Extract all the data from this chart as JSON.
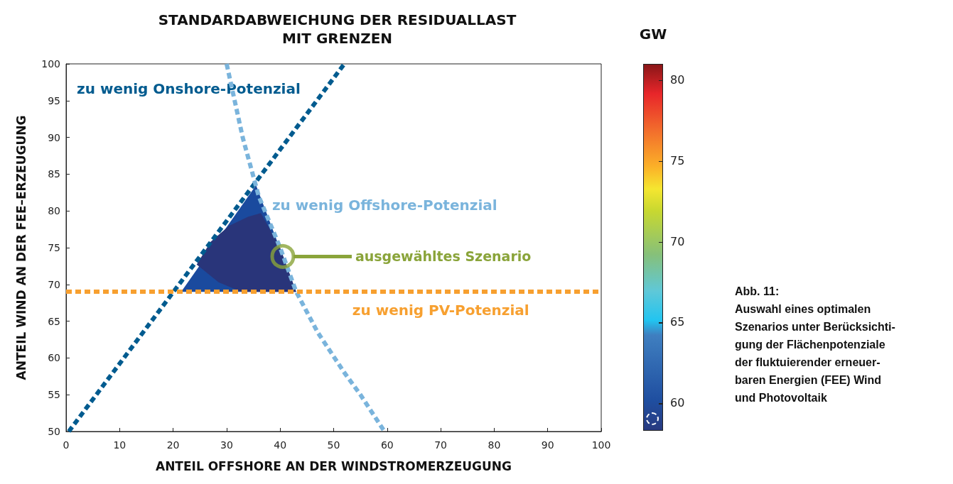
{
  "chart_data": {
    "type": "line",
    "title": "STANDARDABWEICHUNG DER RESIDUALLAST\nMIT GRENZEN",
    "xlabel": "ANTEIL OFFSHORE AN DER WINDSTROMERZEUGUNG",
    "ylabel": "ANTEIL WIND AN DER FEE–ERZEUGUNG",
    "clabel": "GW",
    "xlim": [
      0,
      100
    ],
    "ylim": [
      50,
      100
    ],
    "xticks": [
      0,
      10,
      20,
      30,
      40,
      50,
      60,
      70,
      80,
      90,
      100
    ],
    "yticks": [
      50,
      55,
      60,
      65,
      70,
      75,
      80,
      85,
      90,
      95,
      100
    ],
    "clim": [
      58.3,
      81
    ],
    "cticks": [
      60,
      65,
      70,
      75,
      80
    ],
    "grid": false,
    "legend": false,
    "series": [
      {
        "type": "area",
        "color": "#1a4a9e",
        "x": [
          21.5,
          35.5,
          43,
          21.5
        ],
        "values": [
          69,
          83.5,
          69,
          69
        ]
      },
      {
        "type": "area",
        "color": "#29357a",
        "x": [
          32.8,
          28.5,
          24.4,
          27,
          30.5,
          34,
          36.4,
          40,
          43,
          32.8
        ],
        "values": [
          69,
          70.3,
          72.7,
          75.8,
          78,
          79.2,
          79.7,
          75,
          69,
          69
        ]
      },
      {
        "type": "line",
        "name": "zu wenig Onshore-Potenzial",
        "color": "#005b8f",
        "line_style": "dashed",
        "x": [
          0.5,
          52
        ],
        "values": [
          50,
          100
        ]
      },
      {
        "type": "line",
        "name": "zu wenig Offshore-Potenzial",
        "color": "#7ab4dc",
        "line_style": "dashed",
        "x": [
          30,
          33,
          36,
          40,
          43,
          47,
          52,
          55,
          59.5
        ],
        "values": [
          100,
          90,
          82,
          75,
          69,
          63.5,
          58,
          55,
          50
        ]
      },
      {
        "type": "scatter",
        "color": "#8aa43a",
        "marker": "circle",
        "x": [
          40.5
        ],
        "values": [
          73.8
        ]
      }
    ],
    "ref_lines": [
      {
        "axis": "y",
        "value": 69,
        "label": "zu wenig PV-Potenzial",
        "color": "#f7a030",
        "line_style": "dashed"
      }
    ],
    "annotations": [
      "ausgewähltes Szenario",
      "Abb. 11:\nAuswahl eines optimalen\nSzenarios unter Berücksichti-\ngung der Flächenpotenziale\nder fluktuierender erneuer-\nbaren Energien (FEE) Wind\nund Photovoltaik"
    ]
  }
}
